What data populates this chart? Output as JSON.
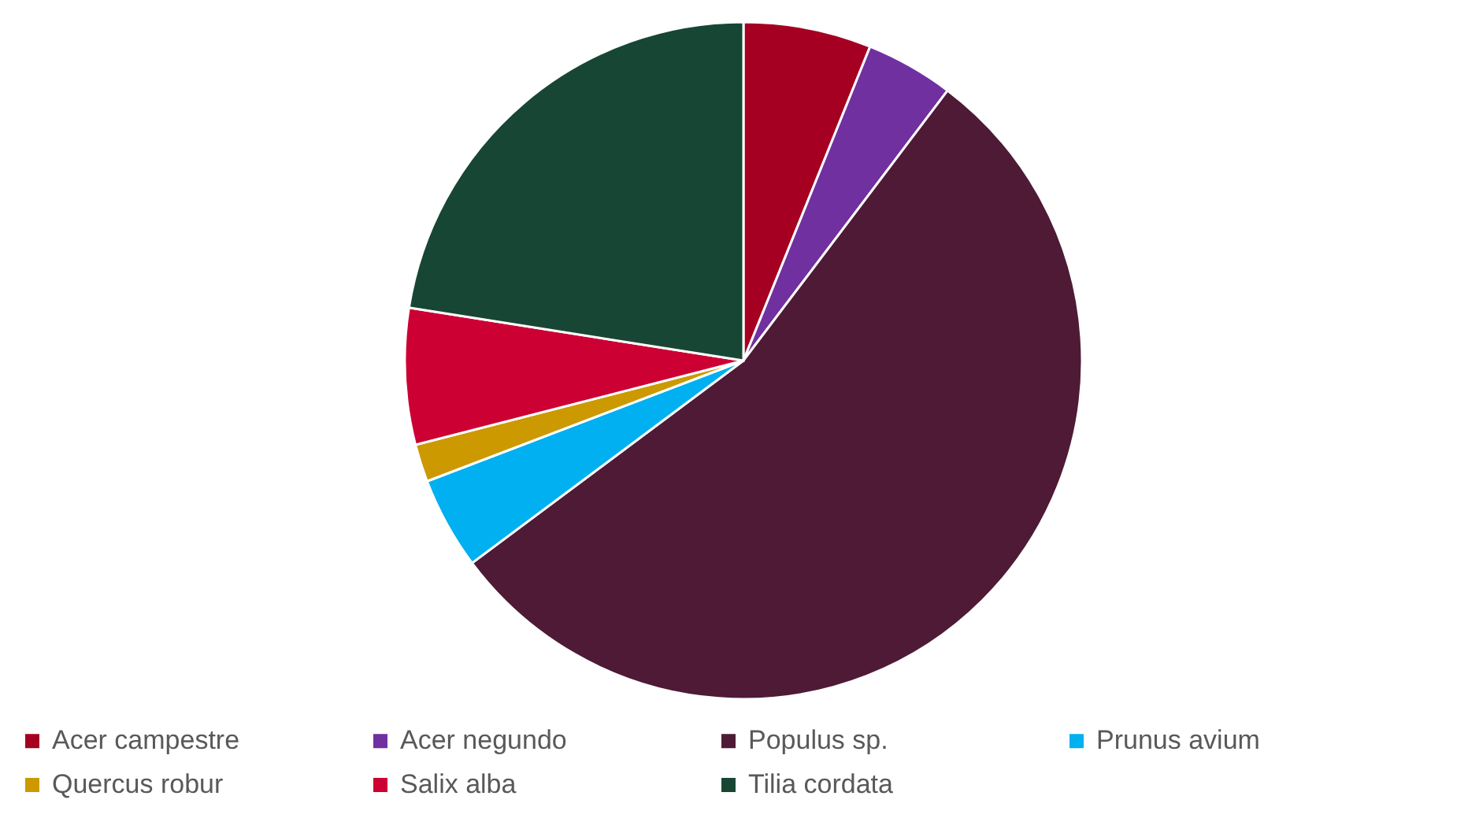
{
  "chart_data": {
    "type": "pie",
    "categories": [
      "Acer campestre",
      "Acer negundo",
      "Populus sp.",
      "Prunus avium",
      "Quercus robur",
      "Salix alba",
      "Tilia cordata"
    ],
    "values": [
      6.1,
      4.2,
      54.5,
      4.4,
      1.8,
      6.5,
      22.5
    ],
    "colors": [
      "#a50021",
      "#7030a0",
      "#4e1a36",
      "#00b0f0",
      "#cc9900",
      "#cc0033",
      "#174734"
    ],
    "legend": "bottom"
  }
}
